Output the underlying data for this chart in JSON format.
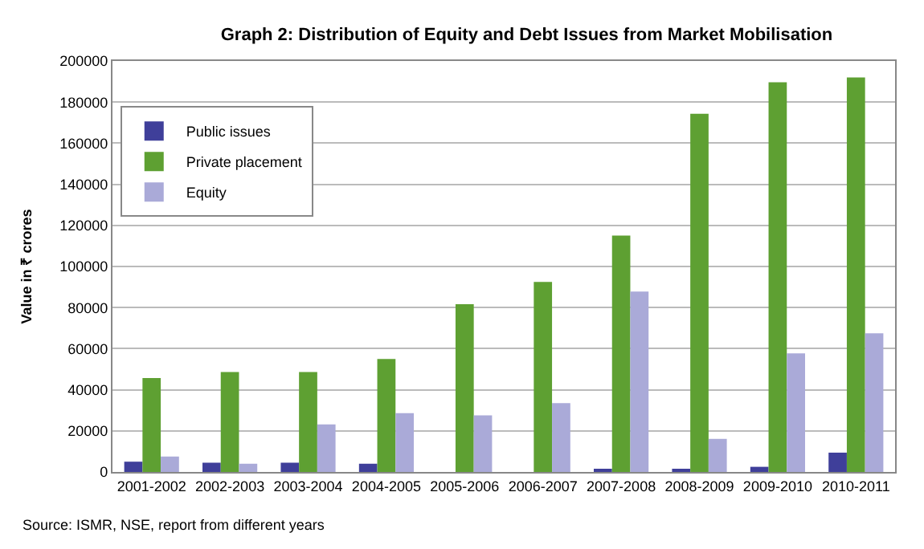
{
  "chart_data": {
    "type": "bar",
    "title": "Graph 2: Distribution of Equity and Debt Issues from Market Mobilisation",
    "ylabel": "Value in ₹ crores",
    "categories": [
      "2001-2002",
      "2002-2003",
      "2003-2004",
      "2004-2005",
      "2005-2006",
      "2006-2007",
      "2007-2008",
      "2008-2009",
      "2009-2010",
      "2010-2011"
    ],
    "series": [
      {
        "name": "Public issues",
        "color": "#3f3f9a",
        "values": [
          5000,
          4500,
          4500,
          4000,
          0,
          0,
          1000,
          1500,
          2500,
          9400
        ]
      },
      {
        "name": "Private placement",
        "color": "#5ea032",
        "values": [
          45700,
          48600,
          48600,
          55000,
          81600,
          92500,
          115000,
          174300,
          189600,
          192000
        ]
      },
      {
        "name": "Equity",
        "color": "#aaaad8",
        "values": [
          7500,
          4000,
          23100,
          28600,
          27500,
          33500,
          87800,
          16100,
          57700,
          67500
        ]
      }
    ],
    "ylim": [
      0,
      200000
    ],
    "yticks": [
      0,
      20000,
      40000,
      60000,
      80000,
      100000,
      120000,
      140000,
      160000,
      180000,
      200000
    ],
    "grid": "y",
    "legend": "top left",
    "annotations": [
      "Source: ISMR, NSE, report from different years"
    ]
  }
}
